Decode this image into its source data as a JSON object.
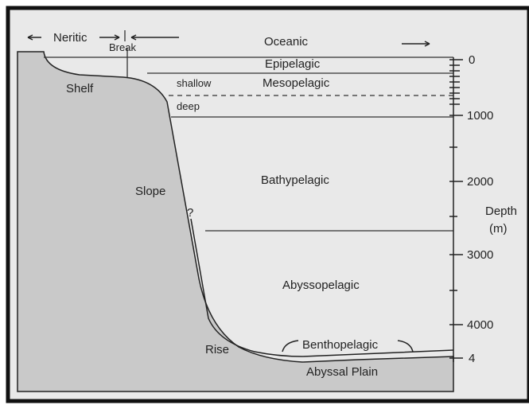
{
  "zones": {
    "neritic": "Neritic",
    "oceanic": "Oceanic",
    "break": "Break",
    "epipelagic": "Epipelagic",
    "mesopelagic": "Mesopelagic",
    "shallow": "shallow",
    "deep": "deep",
    "bathypelagic": "Bathypelagic",
    "abyssopelagic": "Abyssopelagic",
    "benthopelagic": "Benthopelagic"
  },
  "features": {
    "shelf": "Shelf",
    "slope": "Slope",
    "question": "?",
    "rise": "Rise",
    "abyssal_plain": "Abyssal Plain"
  },
  "axis": {
    "title_line1": "Depth",
    "title_line2": "(m)",
    "ticks": [
      "0",
      "1000",
      "2000",
      "3000",
      "4000",
      "4"
    ]
  }
}
